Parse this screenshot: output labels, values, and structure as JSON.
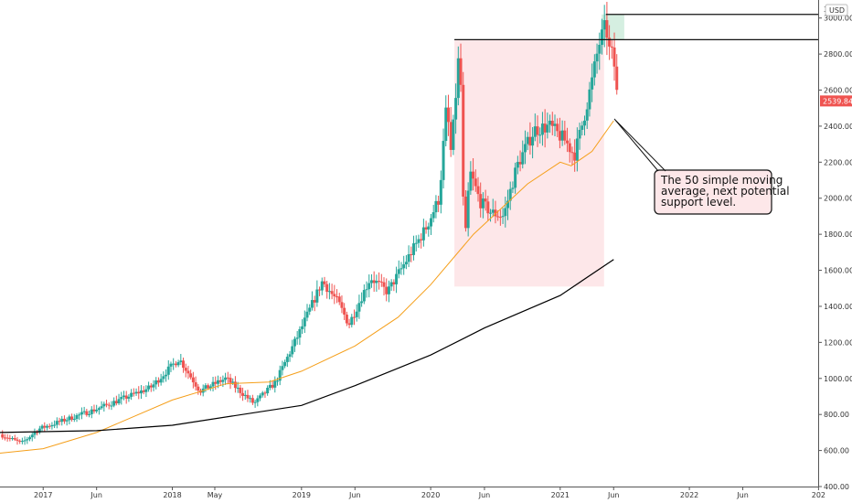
{
  "chart_data": {
    "type": "candlestick",
    "currency_label": "USD",
    "y_axis": {
      "min": 400,
      "max": 3100,
      "tick_values": [
        400,
        600,
        800,
        1000,
        1200,
        1400,
        1600,
        1800,
        2000,
        2200,
        2400,
        2600,
        2800,
        3000
      ],
      "tick_labels": [
        "400.00",
        "600.00",
        "800.00",
        "1000.00",
        "1200.00",
        "1400.00",
        "1600.00",
        "1800.00",
        "2000.00",
        "2200.00",
        "2400.00",
        "2600.00",
        "2800.00",
        "3000.00"
      ],
      "top_partial_label": "3"
    },
    "x_axis": {
      "start": "2016-09-01",
      "end": "2022-12-31",
      "ticks": [
        {
          "date": "2017-01-01",
          "label": "2017"
        },
        {
          "date": "2017-06-01",
          "label": "Jun"
        },
        {
          "date": "2018-01-01",
          "label": "2018"
        },
        {
          "date": "2018-05-01",
          "label": "May"
        },
        {
          "date": "2019-01-01",
          "label": "2019"
        },
        {
          "date": "2019-06-01",
          "label": "Jun"
        },
        {
          "date": "2020-01-01",
          "label": "2020"
        },
        {
          "date": "2020-06-01",
          "label": "Jun"
        },
        {
          "date": "2021-01-01",
          "label": "2021"
        },
        {
          "date": "2021-06-01",
          "label": "Jun"
        },
        {
          "date": "2022-01-01",
          "label": "2022"
        },
        {
          "date": "2022-06-01",
          "label": "Jun"
        },
        {
          "date": "2023-01-01",
          "label": "202"
        }
      ]
    },
    "last_price": 2539.84,
    "last_price_label": "2539.84",
    "up_color": "#26a69a",
    "down_color": "#ef5350",
    "price_anchors": [
      {
        "date": "2016-09-01",
        "close": 690
      },
      {
        "date": "2016-11-01",
        "close": 640
      },
      {
        "date": "2016-12-20",
        "close": 720
      },
      {
        "date": "2017-06-01",
        "close": 830
      },
      {
        "date": "2017-11-01",
        "close": 950
      },
      {
        "date": "2018-01-20",
        "close": 1110
      },
      {
        "date": "2018-03-20",
        "close": 930
      },
      {
        "date": "2018-06-01",
        "close": 1000
      },
      {
        "date": "2018-08-20",
        "close": 860
      },
      {
        "date": "2018-10-20",
        "close": 980
      },
      {
        "date": "2019-01-01",
        "close": 1280
      },
      {
        "date": "2019-03-01",
        "close": 1540
      },
      {
        "date": "2019-04-15",
        "close": 1420
      },
      {
        "date": "2019-05-15",
        "close": 1300
      },
      {
        "date": "2019-07-15",
        "close": 1560
      },
      {
        "date": "2019-09-01",
        "close": 1480
      },
      {
        "date": "2019-11-01",
        "close": 1680
      },
      {
        "date": "2019-12-20",
        "close": 1840
      },
      {
        "date": "2020-01-25",
        "close": 2000
      },
      {
        "date": "2020-02-15",
        "close": 2520
      },
      {
        "date": "2020-02-28",
        "close": 2240
      },
      {
        "date": "2020-03-20",
        "close": 2780
      },
      {
        "date": "2020-03-27",
        "close": 2600
      },
      {
        "date": "2020-04-05",
        "close": 1680
      },
      {
        "date": "2020-04-20",
        "close": 2150
      },
      {
        "date": "2020-05-20",
        "close": 1980
      },
      {
        "date": "2020-06-20",
        "close": 1920
      },
      {
        "date": "2020-07-25",
        "close": 1900
      },
      {
        "date": "2020-09-01",
        "close": 2180
      },
      {
        "date": "2020-10-20",
        "close": 2380
      },
      {
        "date": "2020-12-01",
        "close": 2400
      },
      {
        "date": "2021-01-15",
        "close": 2320
      },
      {
        "date": "2021-02-10",
        "close": 2240
      },
      {
        "date": "2021-03-01",
        "close": 2380
      },
      {
        "date": "2021-04-01",
        "close": 2650
      },
      {
        "date": "2021-04-20",
        "close": 2850
      },
      {
        "date": "2021-05-10",
        "close": 2960
      },
      {
        "date": "2021-05-20",
        "close": 2820
      },
      {
        "date": "2021-06-01",
        "close": 2780
      },
      {
        "date": "2021-06-12",
        "close": 2539.84
      }
    ],
    "series": [
      {
        "type": "line",
        "color": "#f59f1a",
        "points": [
          {
            "date": "2016-09-01",
            "value": 585
          },
          {
            "date": "2017-01-01",
            "value": 610
          },
          {
            "date": "2017-06-01",
            "value": 700
          },
          {
            "date": "2018-01-01",
            "value": 880
          },
          {
            "date": "2018-06-01",
            "value": 970
          },
          {
            "date": "2018-10-01",
            "value": 980
          },
          {
            "date": "2019-01-01",
            "value": 1040
          },
          {
            "date": "2019-06-01",
            "value": 1180
          },
          {
            "date": "2019-10-01",
            "value": 1340
          },
          {
            "date": "2020-01-01",
            "value": 1520
          },
          {
            "date": "2020-05-01",
            "value": 1800
          },
          {
            "date": "2020-10-01",
            "value": 2080
          },
          {
            "date": "2021-01-01",
            "value": 2200
          },
          {
            "date": "2021-02-01",
            "value": 2180
          },
          {
            "date": "2021-04-01",
            "value": 2260
          },
          {
            "date": "2021-06-01",
            "value": 2430
          }
        ]
      },
      {
        "type": "line",
        "color": "#000000",
        "points": [
          {
            "date": "2016-09-01",
            "value": 700
          },
          {
            "date": "2017-06-01",
            "value": 710
          },
          {
            "date": "2018-01-01",
            "value": 740
          },
          {
            "date": "2019-01-01",
            "value": 850
          },
          {
            "date": "2019-06-01",
            "value": 960
          },
          {
            "date": "2020-01-01",
            "value": 1130
          },
          {
            "date": "2020-06-01",
            "value": 1280
          },
          {
            "date": "2021-01-01",
            "value": 1460
          },
          {
            "date": "2021-06-01",
            "value": 1660
          }
        ]
      }
    ],
    "annotations": {
      "red_box": {
        "x_start": "2020-03-08",
        "x_end": "2021-05-05",
        "y_low": 1510,
        "y_high": 2880,
        "color": "#fde7e9"
      },
      "green_box": {
        "x_start": "2021-04-28",
        "x_end": "2021-07-01",
        "y_low": 2880,
        "y_high": 3020,
        "color": "#d5efe1"
      },
      "horizontal_lines": [
        {
          "value": 2880,
          "x_start": "2020-03-08"
        },
        {
          "value": 3020,
          "x_start": "2021-05-10"
        }
      ],
      "callout": {
        "text_lines": [
          "The 50 simple moving",
          "average, next potential",
          "support level."
        ],
        "pointer_date": "2021-06-03",
        "pointer_value": 2440
      }
    }
  }
}
